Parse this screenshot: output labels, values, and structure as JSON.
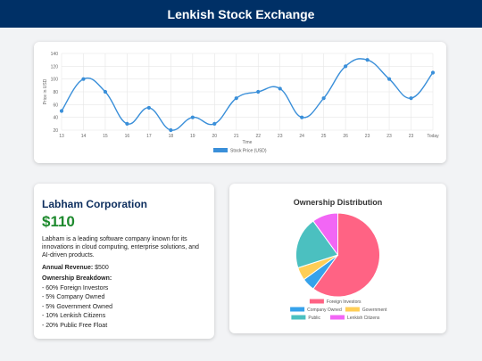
{
  "header": {
    "title": "Lenkish Stock Exchange"
  },
  "chart_data": [
    {
      "type": "line",
      "ylabel": "Price in USD",
      "xlabel": "Time",
      "categories": [
        "13",
        "14",
        "15",
        "16",
        "17",
        "18",
        "19",
        "20",
        "21",
        "22",
        "23",
        "24",
        "25",
        "26",
        "23",
        "23",
        "23",
        "Today"
      ],
      "series": [
        {
          "name": "Stock Price (USD)",
          "color": "#3a8fd9",
          "values": [
            50,
            100,
            80,
            30,
            55,
            20,
            40,
            30,
            70,
            80,
            85,
            40,
            70,
            120,
            130,
            100,
            70,
            110
          ]
        }
      ],
      "ylim": [
        20,
        140
      ],
      "yticks": [
        20,
        40,
        60,
        80,
        100,
        120,
        140
      ],
      "grid": true,
      "legend": "bottom"
    },
    {
      "type": "pie",
      "title": "Ownership Distribution",
      "categories": [
        "Foreign Investors",
        "Company Owned",
        "Government",
        "Public",
        "Lenkish Citizens"
      ],
      "values": [
        60,
        5,
        5,
        20,
        10
      ],
      "colors": [
        "#ff6384",
        "#36a2eb",
        "#ffce56",
        "#4bc0c0",
        "#f266f5"
      ],
      "legend": "bottom"
    }
  ],
  "company": {
    "name": "Labham Corporation",
    "price": "$110",
    "description": "Labham is a leading software company known for its innovations in cloud computing, enterprise solutions, and AI-driven products.",
    "revenue_label": "Annual Revenue:",
    "revenue_value": "$500",
    "breakdown_title": "Ownership Breakdown:",
    "breakdown": [
      "- 60% Foreign Investors",
      "- 5% Company Owned",
      "- 5% Government Owned",
      "- 10% Lenkish Citizens",
      "- 20% Public Free Float"
    ]
  }
}
